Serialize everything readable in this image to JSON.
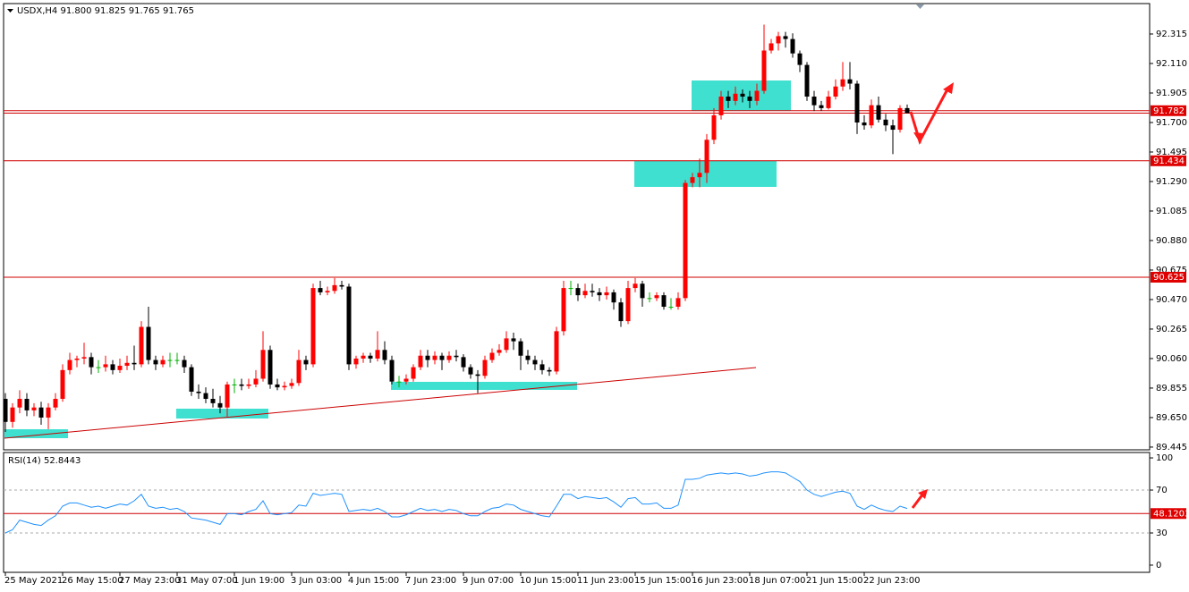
{
  "chart_data": {
    "type": "candlestick",
    "header": "USDX,H4  91.800 91.825 91.765 91.765",
    "up_color": "#ff0000",
    "down_color": "#000000",
    "doji_color": "#00b000",
    "ylim": [
      89.426,
      92.52
    ],
    "yticks": [
      92.315,
      {
        "value": 92.11,
        "label": "92.110"
      },
      91.905,
      {
        "value": 91.7,
        "label": "91.700"
      },
      91.495,
      {
        "value": 91.29,
        "label": "91.290"
      },
      91.085,
      {
        "value": 90.88,
        "label": "90.880"
      },
      90.675,
      {
        "value": 90.47,
        "label": "90.470"
      },
      90.265,
      {
        "value": 90.06,
        "label": "90.060"
      },
      89.855,
      {
        "value": 89.65,
        "label": "89.650"
      },
      89.445
    ],
    "levels": [
      91.782,
      91.434,
      90.625
    ],
    "categories": [
      "25 May 2021",
      null,
      null,
      null,
      null,
      null,
      null,
      null,
      "26 May 15:00",
      null,
      null,
      null,
      null,
      null,
      null,
      null,
      "27 May 23:00",
      null,
      null,
      null,
      null,
      null,
      null,
      null,
      "31 May 07:00",
      null,
      null,
      null,
      null,
      null,
      null,
      null,
      "1 Jun 19:00",
      null,
      null,
      null,
      null,
      null,
      null,
      null,
      "3 Jun 03:00",
      null,
      null,
      null,
      null,
      null,
      null,
      null,
      "4 Jun 15:00",
      null,
      null,
      null,
      null,
      null,
      null,
      null,
      "7 Jun 23:00",
      null,
      null,
      null,
      null,
      null,
      null,
      null,
      "9 Jun 07:00",
      null,
      null,
      null,
      null,
      null,
      null,
      null,
      "10 Jun 15:00",
      null,
      null,
      null,
      null,
      null,
      null,
      null,
      "11 Jun 23:00",
      null,
      null,
      null,
      null,
      null,
      null,
      null,
      "15 Jun 15:00",
      null,
      null,
      null,
      null,
      null,
      null,
      null,
      "16 Jun 23:00",
      null,
      null,
      null,
      null,
      null,
      null,
      null,
      "18 Jun 07:00",
      null,
      null,
      null,
      null,
      null,
      null,
      null,
      "21 Jun 15:00",
      null,
      null,
      null,
      null,
      null,
      null,
      null,
      "22 Jun 23:00",
      null,
      null,
      null,
      null,
      null,
      null
    ],
    "candles": [
      [
        89.78,
        89.82,
        89.55,
        89.62
      ],
      [
        89.62,
        89.75,
        89.58,
        89.72
      ],
      [
        89.72,
        89.84,
        89.68,
        89.78
      ],
      [
        89.78,
        89.82,
        89.66,
        89.7
      ],
      [
        89.7,
        89.75,
        89.66,
        89.72
      ],
      [
        89.72,
        89.76,
        89.6,
        89.65
      ],
      [
        89.65,
        89.75,
        89.57,
        89.72
      ],
      [
        89.72,
        89.82,
        89.7,
        89.78
      ],
      [
        89.78,
        90.02,
        89.76,
        89.98
      ],
      [
        89.98,
        90.1,
        89.95,
        90.05
      ],
      [
        90.05,
        90.08,
        90.0,
        90.06
      ],
      [
        90.06,
        90.17,
        90.02,
        90.07
      ],
      [
        90.07,
        90.1,
        89.95,
        90.0
      ],
      [
        90.0,
        90.05,
        89.96,
        90.0
      ],
      [
        90.0,
        90.08,
        89.97,
        90.02
      ],
      [
        90.02,
        90.05,
        89.95,
        89.98
      ],
      [
        89.98,
        90.06,
        89.96,
        90.01
      ],
      [
        90.01,
        90.08,
        89.98,
        90.03
      ],
      [
        90.03,
        90.15,
        89.98,
        90.02
      ],
      [
        90.02,
        90.32,
        90.0,
        90.28
      ],
      [
        90.28,
        90.42,
        90.02,
        90.05
      ],
      [
        90.05,
        90.08,
        89.98,
        90.02
      ],
      [
        90.02,
        90.08,
        90.0,
        90.05
      ],
      [
        90.05,
        90.1,
        90.0,
        90.05
      ],
      [
        90.05,
        90.1,
        90.02,
        90.05
      ],
      [
        90.05,
        90.08,
        89.96,
        90.0
      ],
      [
        90.0,
        90.02,
        89.8,
        89.83
      ],
      [
        89.83,
        89.88,
        89.78,
        89.82
      ],
      [
        89.82,
        89.86,
        89.75,
        89.78
      ],
      [
        89.78,
        89.85,
        89.72,
        89.75
      ],
      [
        89.75,
        89.8,
        89.68,
        89.72
      ],
      [
        89.72,
        89.9,
        89.65,
        89.88
      ],
      [
        89.88,
        89.92,
        89.82,
        89.88
      ],
      [
        89.88,
        89.92,
        89.84,
        89.87
      ],
      [
        89.87,
        89.92,
        89.85,
        89.88
      ],
      [
        89.88,
        89.98,
        89.86,
        89.92
      ],
      [
        89.92,
        90.25,
        89.9,
        90.12
      ],
      [
        90.12,
        90.15,
        89.85,
        89.88
      ],
      [
        89.88,
        89.92,
        89.84,
        89.86
      ],
      [
        89.86,
        89.9,
        89.84,
        89.87
      ],
      [
        89.87,
        89.92,
        89.85,
        89.89
      ],
      [
        89.89,
        90.12,
        89.87,
        90.05
      ],
      [
        90.05,
        90.08,
        89.98,
        90.02
      ],
      [
        90.02,
        90.58,
        90.0,
        90.55
      ],
      [
        90.55,
        90.6,
        90.5,
        90.52
      ],
      [
        90.52,
        90.56,
        90.5,
        90.53
      ],
      [
        90.53,
        90.62,
        90.51,
        90.57
      ],
      [
        90.57,
        90.6,
        90.54,
        90.56
      ],
      [
        90.56,
        90.58,
        89.98,
        90.02
      ],
      [
        90.02,
        90.08,
        89.99,
        90.06
      ],
      [
        90.06,
        90.1,
        90.03,
        90.08
      ],
      [
        90.08,
        90.1,
        90.03,
        90.06
      ],
      [
        90.06,
        90.25,
        90.04,
        90.12
      ],
      [
        90.12,
        90.18,
        90.02,
        90.05
      ],
      [
        90.05,
        90.08,
        89.88,
        89.9
      ],
      [
        89.9,
        89.94,
        89.86,
        89.9
      ],
      [
        89.9,
        89.95,
        89.88,
        89.92
      ],
      [
        89.92,
        90.02,
        89.9,
        90.0
      ],
      [
        90.0,
        90.12,
        89.98,
        90.08
      ],
      [
        90.08,
        90.12,
        90.0,
        90.05
      ],
      [
        90.05,
        90.11,
        90.02,
        90.08
      ],
      [
        90.08,
        90.1,
        89.98,
        90.05
      ],
      [
        90.05,
        90.11,
        90.03,
        90.08
      ],
      [
        90.08,
        90.12,
        90.04,
        90.07
      ],
      [
        90.07,
        90.09,
        89.97,
        90.0
      ],
      [
        90.0,
        90.02,
        89.92,
        89.95
      ],
      [
        89.95,
        89.98,
        89.82,
        89.94
      ],
      [
        89.94,
        90.08,
        89.92,
        90.05
      ],
      [
        90.05,
        90.13,
        90.03,
        90.1
      ],
      [
        90.1,
        90.16,
        90.08,
        90.12
      ],
      [
        90.12,
        90.25,
        90.1,
        90.2
      ],
      [
        90.2,
        90.24,
        90.12,
        90.18
      ],
      [
        90.18,
        90.2,
        89.98,
        90.08
      ],
      [
        90.08,
        90.12,
        90.02,
        90.05
      ],
      [
        90.05,
        90.08,
        89.98,
        90.02
      ],
      [
        90.02,
        90.05,
        89.95,
        89.98
      ],
      [
        89.98,
        90.0,
        89.94,
        89.97
      ],
      [
        89.97,
        90.28,
        89.95,
        90.25
      ],
      [
        90.25,
        90.6,
        90.22,
        90.55
      ],
      [
        90.55,
        90.6,
        90.5,
        90.55
      ],
      [
        90.55,
        90.58,
        90.46,
        90.5
      ],
      [
        90.5,
        90.58,
        90.48,
        90.53
      ],
      [
        90.53,
        90.58,
        90.49,
        90.52
      ],
      [
        90.52,
        90.55,
        90.46,
        90.5
      ],
      [
        90.5,
        90.56,
        90.47,
        90.52
      ],
      [
        90.52,
        90.54,
        90.4,
        90.45
      ],
      [
        90.45,
        90.48,
        90.28,
        90.32
      ],
      [
        90.32,
        90.6,
        90.3,
        90.55
      ],
      [
        90.55,
        90.62,
        90.52,
        90.58
      ],
      [
        90.58,
        90.6,
        90.42,
        90.48
      ],
      [
        90.48,
        90.52,
        90.45,
        90.48
      ],
      [
        90.48,
        90.52,
        90.46,
        90.5
      ],
      [
        90.5,
        90.52,
        90.4,
        90.42
      ],
      [
        90.42,
        90.48,
        90.4,
        90.42
      ],
      [
        90.42,
        90.52,
        90.4,
        90.48
      ],
      [
        90.48,
        91.3,
        90.46,
        91.28
      ],
      [
        91.28,
        91.35,
        91.25,
        91.32
      ],
      [
        91.32,
        91.45,
        91.25,
        91.35
      ],
      [
        91.35,
        91.62,
        91.28,
        91.58
      ],
      [
        91.58,
        91.8,
        91.55,
        91.75
      ],
      [
        91.75,
        91.92,
        91.72,
        91.88
      ],
      [
        91.88,
        91.92,
        91.8,
        91.85
      ],
      [
        91.85,
        91.95,
        91.82,
        91.9
      ],
      [
        91.9,
        91.93,
        91.84,
        91.88
      ],
      [
        91.88,
        91.92,
        91.8,
        91.85
      ],
      [
        91.85,
        91.97,
        91.82,
        91.92
      ],
      [
        91.92,
        92.38,
        91.9,
        92.2
      ],
      [
        92.2,
        92.28,
        92.18,
        92.25
      ],
      [
        92.25,
        92.33,
        92.2,
        92.3
      ],
      [
        92.3,
        92.33,
        92.22,
        92.28
      ],
      [
        92.28,
        92.32,
        92.15,
        92.18
      ],
      [
        92.18,
        92.2,
        92.05,
        92.1
      ],
      [
        92.1,
        92.12,
        91.85,
        91.88
      ],
      [
        91.88,
        91.92,
        91.78,
        91.82
      ],
      [
        91.82,
        91.85,
        91.78,
        91.8
      ],
      [
        91.8,
        91.92,
        91.79,
        91.88
      ],
      [
        91.88,
        92.0,
        91.86,
        91.95
      ],
      [
        91.95,
        92.12,
        91.92,
        92.0
      ],
      [
        92.0,
        92.12,
        91.93,
        91.97
      ],
      [
        91.97,
        91.99,
        91.62,
        91.7
      ],
      [
        91.7,
        91.75,
        91.65,
        91.68
      ],
      [
        91.68,
        91.86,
        91.66,
        91.82
      ],
      [
        91.82,
        91.88,
        91.7,
        91.72
      ],
      [
        91.72,
        91.76,
        91.64,
        91.68
      ],
      [
        91.68,
        91.72,
        91.48,
        91.65
      ],
      [
        91.65,
        91.82,
        91.63,
        91.8
      ],
      [
        91.8,
        91.825,
        91.765,
        91.765
      ]
    ],
    "rsi": {
      "label": "RSI(14) 52.8443",
      "color": "#1e90ff",
      "ylim": [
        -6.7,
        104.2
      ],
      "yticks": [
        100,
        70,
        30,
        0
      ],
      "dashed": [
        70,
        30
      ],
      "level": 48.1203,
      "values": [
        30,
        33,
        42,
        40,
        38,
        37,
        42,
        46,
        55,
        58,
        58,
        56,
        54,
        55,
        53,
        55,
        57,
        56,
        60,
        66,
        55,
        53,
        54,
        52,
        53,
        50,
        44,
        43,
        42,
        40,
        38,
        48,
        48,
        47,
        50,
        52,
        60,
        48,
        47,
        48,
        49,
        56,
        55,
        67,
        65,
        66,
        67,
        66,
        50,
        51,
        52,
        51,
        53,
        50,
        45,
        45,
        47,
        50,
        53,
        51,
        52,
        50,
        52,
        51,
        48,
        46,
        46,
        50,
        53,
        54,
        57,
        56,
        52,
        50,
        48,
        46,
        45,
        55,
        66,
        66,
        62,
        64,
        63,
        62,
        63,
        59,
        54,
        62,
        63,
        57,
        57,
        58,
        53,
        53,
        56,
        80,
        80,
        81,
        84,
        85,
        86,
        85,
        86,
        85,
        83,
        84,
        86,
        87,
        87,
        86,
        82,
        78,
        70,
        66,
        64,
        66,
        68,
        69,
        67,
        55,
        52,
        56,
        53,
        51,
        50,
        55,
        52.8443
      ]
    }
  }
}
